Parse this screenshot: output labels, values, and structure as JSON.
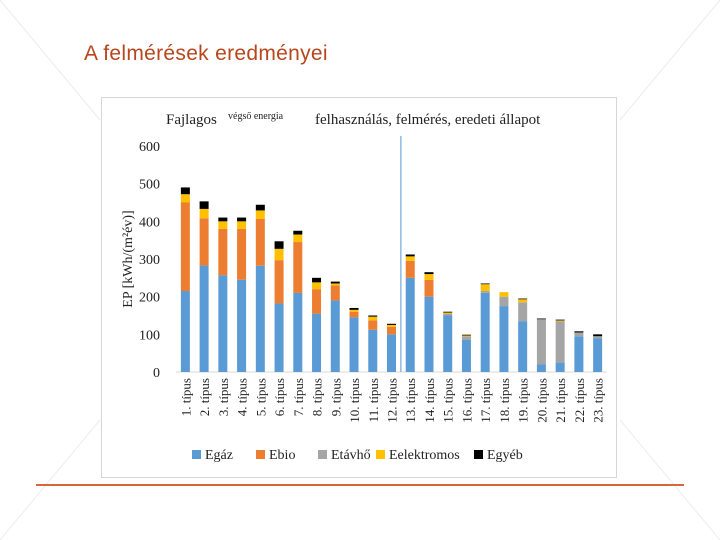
{
  "slide": {
    "title": "A felmérések eredményei"
  },
  "colors": {
    "title": "#b8461d",
    "rule": "#d9663a",
    "divider": "#6fa8dc"
  },
  "chart_data": {
    "type": "bar",
    "stacked": true,
    "title_part1": "Fajlagos",
    "title_overlay": "végső energia",
    "title_part2": "felhasználás, felmérés, eredeti állapot",
    "ylabel": "EP [kWh/(m²év)]",
    "ylim": [
      0,
      600
    ],
    "yticks": [
      0,
      100,
      200,
      300,
      400,
      500,
      600
    ],
    "grid": false,
    "legend_position": "bottom",
    "divider_after_category": "12. típus",
    "categories": [
      "1. típus",
      "2. típus",
      "3. típus",
      "4. típus",
      "5. típus",
      "6. típus",
      "7. típus",
      "8. típus",
      "9. típus",
      "10. típus",
      "11. típus",
      "12. típus",
      "13. típus",
      "14. típus",
      "15. típus",
      "16. típus",
      "17. típus",
      "18. típus",
      "19. típus",
      "20. típus",
      "21. típus",
      "22. típus",
      "23. típus"
    ],
    "series": [
      {
        "name": "Egáz",
        "color": "#5b9bd5",
        "values": [
          215,
          283,
          257,
          245,
          282,
          182,
          210,
          155,
          190,
          145,
          112,
          100,
          250,
          200,
          150,
          85,
          210,
          175,
          135,
          20,
          25,
          95,
          90
        ]
      },
      {
        "name": "Ebio",
        "color": "#ed7d31",
        "values": [
          235,
          125,
          123,
          135,
          125,
          115,
          135,
          65,
          40,
          15,
          25,
          20,
          45,
          45,
          0,
          0,
          0,
          0,
          0,
          0,
          0,
          0,
          0
        ]
      },
      {
        "name": "Etávhő",
        "color": "#a5a5a5",
        "values": [
          0,
          0,
          0,
          0,
          0,
          0,
          0,
          0,
          0,
          0,
          0,
          0,
          0,
          0,
          5,
          10,
          5,
          25,
          50,
          120,
          110,
          10,
          5
        ]
      },
      {
        "name": "Eelektromos",
        "color": "#ffc000",
        "values": [
          22,
          25,
          20,
          20,
          22,
          30,
          20,
          18,
          5,
          5,
          10,
          5,
          12,
          15,
          3,
          2,
          18,
          12,
          8,
          0,
          2,
          0,
          0
        ]
      },
      {
        "name": "Egyéb",
        "color": "#000000",
        "values": [
          18,
          20,
          10,
          10,
          15,
          20,
          10,
          12,
          5,
          5,
          3,
          3,
          5,
          5,
          2,
          2,
          2,
          0,
          2,
          2,
          2,
          3,
          5
        ]
      }
    ]
  }
}
